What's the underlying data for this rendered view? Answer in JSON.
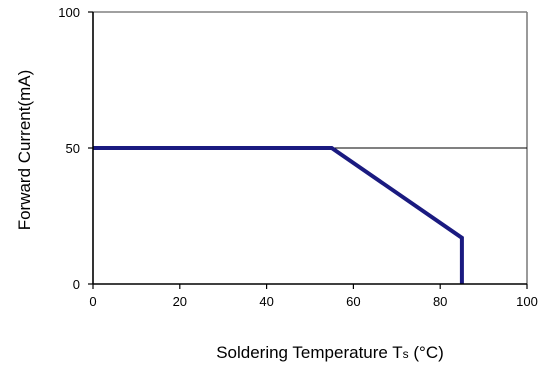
{
  "chart_data": {
    "type": "line",
    "title": "",
    "ylabel": "Forward Current(mA)",
    "xlabel_main": "Soldering Temperature T",
    "xlabel_sub": "s",
    "xlabel_unit": " (°C)",
    "xlim": [
      0,
      100
    ],
    "ylim": [
      0,
      100
    ],
    "x_ticks": [
      0,
      20,
      40,
      60,
      80,
      100
    ],
    "y_ticks": [
      0,
      50,
      100
    ],
    "grid": false,
    "reference_line": {
      "y": 50
    },
    "series": [
      {
        "points": [
          [
            0,
            50
          ],
          [
            55,
            50
          ],
          [
            85,
            17
          ],
          [
            85,
            0
          ]
        ],
        "color": "#1a1a80"
      }
    ],
    "frame_color": "#808080"
  }
}
